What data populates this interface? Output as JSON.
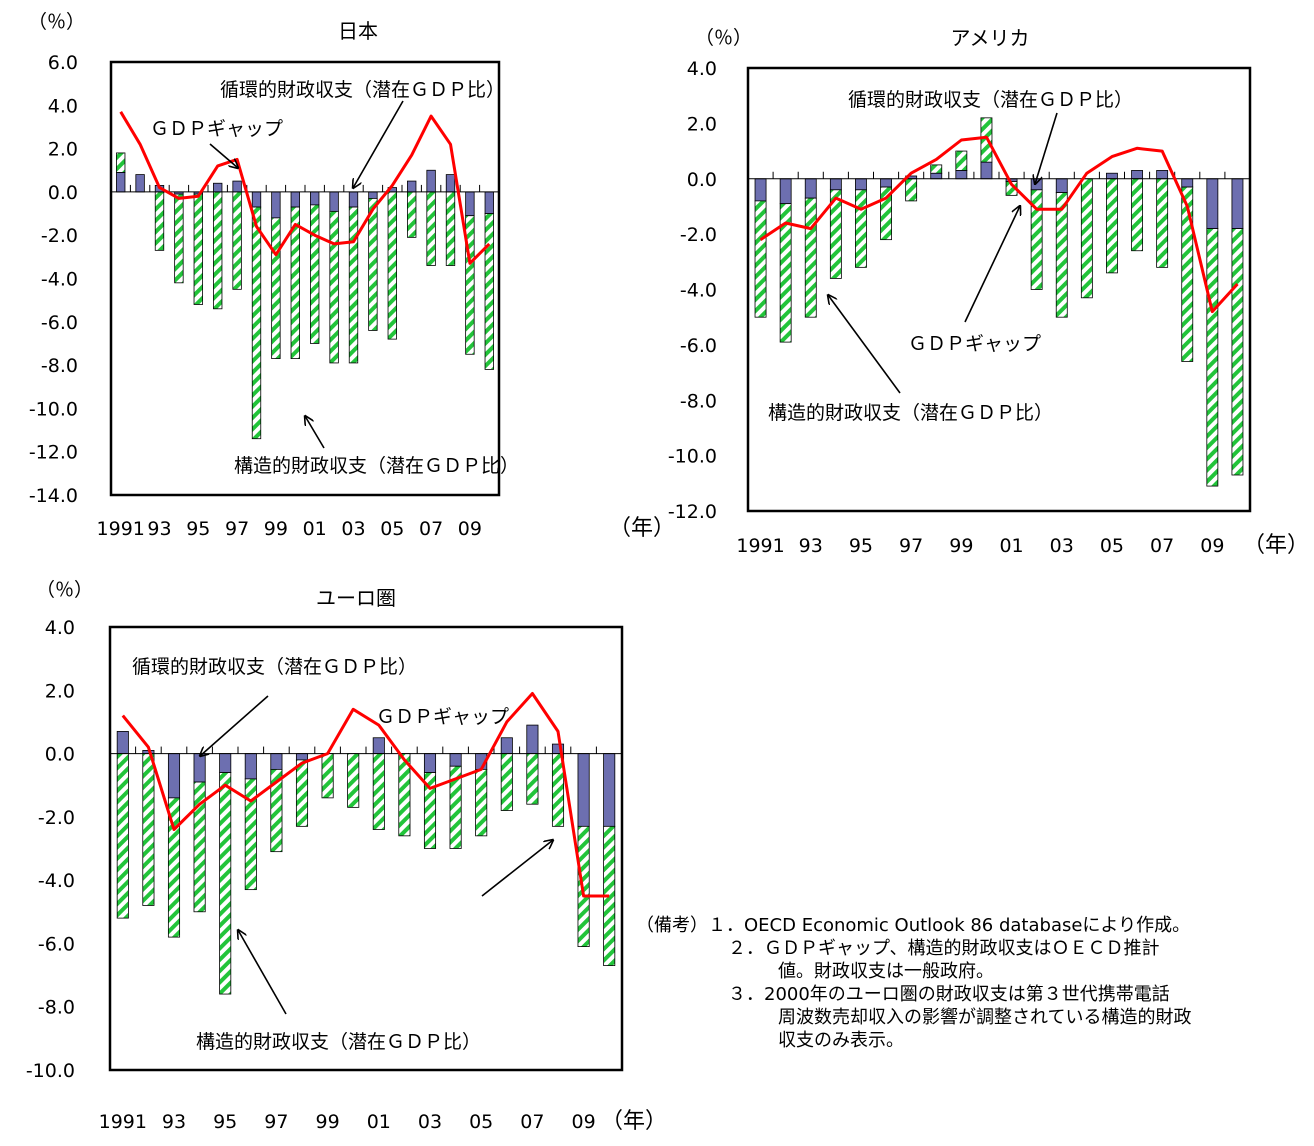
{
  "chart_data": [
    {
      "type": "bar",
      "title": "日本",
      "yunit": "（％）",
      "xunit": "（年）",
      "ylim": [
        -14,
        6
      ],
      "yticks": [
        "6.0",
        "4.0",
        "2.0",
        "0.0",
        "-2.0",
        "-4.0",
        "-6.0",
        "-8.0",
        "-10.0",
        "-12.0",
        "-14.0"
      ],
      "xtick_labels": [
        "1991",
        "93",
        "95",
        "97",
        "99",
        "01",
        "03",
        "05",
        "07",
        "09"
      ],
      "years": [
        1991,
        1992,
        1993,
        1994,
        1995,
        1996,
        1997,
        1998,
        1999,
        2000,
        2001,
        2002,
        2003,
        2004,
        2005,
        2006,
        2007,
        2008,
        2009,
        2010
      ],
      "series": [
        {
          "name": "構造的財政収支（潜在ＧＤＰ比）",
          "kind": "bar",
          "values": [
            0.9,
            0.0,
            -2.7,
            -4.1,
            -5.1,
            -5.4,
            -4.5,
            -10.7,
            -6.5,
            -7.0,
            -6.4,
            -7.0,
            -7.2,
            -6.1,
            -6.8,
            -2.1,
            -3.4,
            -3.4,
            -6.4,
            -7.2
          ]
        },
        {
          "name": "循環的財政収支（潜在ＧＤＰ比）",
          "kind": "bar",
          "values": [
            0.9,
            0.8,
            0.3,
            -0.1,
            -0.1,
            0.4,
            0.5,
            -0.7,
            -1.2,
            -0.7,
            -0.6,
            -0.9,
            -0.7,
            -0.3,
            0.2,
            0.5,
            1.0,
            0.8,
            -1.1,
            -1.0
          ]
        },
        {
          "name": "ＧＤＰギャップ",
          "kind": "line",
          "color": "#ff0000",
          "values": [
            3.7,
            2.2,
            0.2,
            -0.3,
            -0.2,
            1.2,
            1.5,
            -1.6,
            -2.9,
            -1.5,
            -2.0,
            -2.4,
            -2.3,
            -0.8,
            0.3,
            1.7,
            3.5,
            2.2,
            -3.3,
            -2.4
          ]
        }
      ],
      "annotations": [
        "循環的財政収支（潜在ＧＤＰ比）",
        "ＧＤＰギャップ",
        "構造的財政収支（潜在ＧＤＰ比）"
      ]
    },
    {
      "type": "bar",
      "title": "アメリカ",
      "yunit": "（％）",
      "xunit": "（年）",
      "ylim": [
        -12,
        4
      ],
      "yticks": [
        "4.0",
        "2.0",
        "0.0",
        "-2.0",
        "-4.0",
        "-6.0",
        "-8.0",
        "-10.0",
        "-12.0"
      ],
      "xtick_labels": [
        "1991",
        "93",
        "95",
        "97",
        "99",
        "01",
        "03",
        "05",
        "07",
        "09"
      ],
      "years": [
        1991,
        1992,
        1993,
        1994,
        1995,
        1996,
        1997,
        1998,
        1999,
        2000,
        2001,
        2002,
        2003,
        2004,
        2005,
        2006,
        2007,
        2008,
        2009,
        2010
      ],
      "series": [
        {
          "name": "構造的財政収支（潜在ＧＤＰ比）",
          "kind": "bar",
          "values": [
            -4.2,
            -5.0,
            -4.3,
            -3.2,
            -2.8,
            -1.9,
            -0.8,
            0.3,
            0.7,
            1.6,
            -0.5,
            -3.6,
            -4.5,
            -4.3,
            -3.4,
            -2.6,
            -3.2,
            -6.3,
            -9.3,
            -8.9
          ]
        },
        {
          "name": "循環的財政収支（潜在ＧＤＰ比）",
          "kind": "bar",
          "values": [
            -0.8,
            -0.9,
            -0.7,
            -0.4,
            -0.4,
            -0.3,
            0.1,
            0.2,
            0.3,
            0.6,
            -0.1,
            -0.4,
            -0.5,
            0.0,
            0.2,
            0.3,
            0.3,
            -0.3,
            -1.8,
            -1.8
          ]
        },
        {
          "name": "ＧＤＰギャップ",
          "kind": "line",
          "color": "#ff0000",
          "values": [
            -2.2,
            -1.6,
            -1.8,
            -0.7,
            -1.1,
            -0.7,
            0.2,
            0.7,
            1.4,
            1.5,
            -0.2,
            -1.1,
            -1.1,
            0.2,
            0.8,
            1.1,
            1.0,
            -1.0,
            -4.8,
            -3.8
          ]
        }
      ],
      "annotations": [
        "循環的財政収支（潜在ＧＤＰ比）",
        "ＧＤＰギャップ",
        "構造的財政収支（潜在ＧＤＰ比）"
      ]
    },
    {
      "type": "bar",
      "title": "ユーロ圏",
      "yunit": "（％）",
      "xunit": "（年）",
      "ylim": [
        -10,
        4
      ],
      "yticks": [
        "4.0",
        "2.0",
        "0.0",
        "-2.0",
        "-4.0",
        "-6.0",
        "-8.0",
        "-10.0"
      ],
      "xtick_labels": [
        "1991",
        "93",
        "95",
        "97",
        "99",
        "01",
        "03",
        "05",
        "07",
        "09"
      ],
      "years": [
        1991,
        1992,
        1993,
        1994,
        1995,
        1996,
        1997,
        1998,
        1999,
        2000,
        2001,
        2002,
        2003,
        2004,
        2005,
        2006,
        2007,
        2008,
        2009,
        2010
      ],
      "series": [
        {
          "name": "構造的財政収支（潜在ＧＤＰ比）",
          "kind": "bar",
          "values": [
            -5.2,
            -4.8,
            -4.4,
            -4.1,
            -7.0,
            -3.5,
            -2.6,
            -2.1,
            -1.4,
            -1.7,
            -2.4,
            -2.6,
            -2.4,
            -2.6,
            -2.1,
            -1.8,
            -1.6,
            -2.3,
            -3.8,
            -4.4
          ]
        },
        {
          "name": "循環的財政収支（潜在ＧＤＰ比）",
          "kind": "bar",
          "values": [
            0.7,
            0.1,
            -1.4,
            -0.9,
            -0.6,
            -0.8,
            -0.5,
            -0.2,
            0.0,
            0.0,
            0.5,
            0.0,
            -0.6,
            -0.4,
            -0.5,
            0.5,
            0.9,
            0.3,
            -2.3,
            -2.3
          ]
        },
        {
          "name": "ＧＤＰギャップ",
          "kind": "line",
          "color": "#ff0000",
          "values": [
            1.2,
            0.2,
            -2.4,
            -1.6,
            -1.0,
            -1.5,
            -0.9,
            -0.3,
            0.0,
            1.4,
            0.9,
            -0.2,
            -1.1,
            -0.8,
            -0.5,
            1.0,
            1.9,
            0.7,
            -4.5,
            -4.5
          ]
        }
      ],
      "annotations": [
        "循環的財政収支（潜在ＧＤＰ比）",
        "ＧＤＰギャップ",
        "構造的財政収支（潜在ＧＤＰ比）"
      ]
    }
  ],
  "notes": {
    "label": "（備考）",
    "n1_num": "１．",
    "n1": "OECD Economic Outlook 86 databaseにより作成。",
    "n2_num": "２．",
    "n2a": "ＧＤＰギャップ、構造的財政収支はＯＥＣＤ推計",
    "n2b": "値。財政収支は一般政府。",
    "n3_num": "３．",
    "n3a": "2000年のユーロ圏の財政収支は第３世代携帯電話",
    "n3b": "周波数売却収入の影響が調整されている構造的財政",
    "n3c": "収支のみ表示。"
  },
  "colors": {
    "structural_bar": "#22c43a",
    "cyclical_bar": "#6d6fb0",
    "gdp_gap_line": "#ff0000"
  }
}
